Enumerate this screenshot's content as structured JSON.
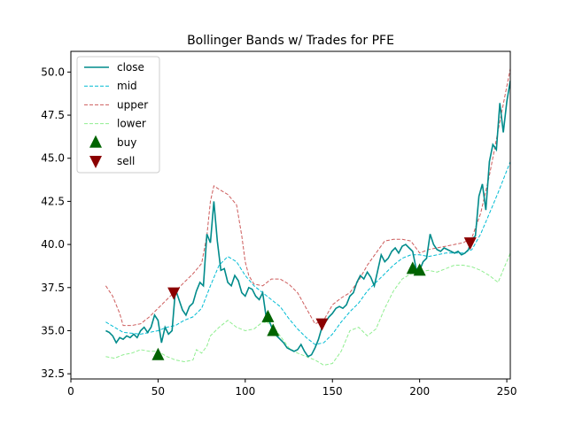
{
  "chart_data": {
    "type": "line",
    "title": "Bollinger Bands w/ Trades for PFE",
    "xlabel": "",
    "ylabel": "",
    "xlim": [
      0,
      252
    ],
    "ylim": [
      32.2,
      51.2
    ],
    "x_ticks": [
      0,
      50,
      100,
      150,
      200,
      250
    ],
    "y_ticks": [
      32.5,
      35.0,
      37.5,
      40.0,
      42.5,
      45.0,
      47.5,
      50.0
    ],
    "y_tick_labels": [
      "32.5",
      "35.0",
      "37.5",
      "40.0",
      "42.5",
      "45.0",
      "47.5",
      "50.0"
    ],
    "grid": false,
    "legend_position": "top-left",
    "series": [
      {
        "name": "close",
        "color": "#008b8b",
        "style": "solid",
        "x": [
          20,
          22,
          24,
          26,
          28,
          30,
          32,
          34,
          36,
          38,
          40,
          42,
          44,
          46,
          48,
          50,
          52,
          54,
          56,
          58,
          60,
          62,
          64,
          66,
          68,
          70,
          72,
          74,
          76,
          78,
          80,
          82,
          84,
          86,
          88,
          90,
          92,
          94,
          96,
          98,
          100,
          102,
          104,
          106,
          108,
          110,
          112,
          114,
          116,
          118,
          120,
          122,
          124,
          126,
          128,
          130,
          132,
          134,
          136,
          138,
          140,
          142,
          144,
          146,
          148,
          150,
          152,
          154,
          156,
          158,
          160,
          162,
          164,
          166,
          168,
          170,
          172,
          174,
          176,
          178,
          180,
          182,
          184,
          186,
          188,
          190,
          192,
          194,
          196,
          198,
          200,
          202,
          204,
          206,
          208,
          210,
          212,
          214,
          216,
          218,
          220,
          222,
          224,
          226,
          228,
          230,
          232,
          234,
          236,
          238,
          240,
          242,
          244,
          246,
          248,
          250,
          252
        ],
        "values": [
          35.0,
          34.9,
          34.7,
          34.3,
          34.6,
          34.5,
          34.7,
          34.6,
          34.8,
          34.6,
          35.0,
          35.2,
          34.9,
          35.2,
          35.9,
          35.6,
          34.3,
          35.2,
          34.8,
          35.0,
          37.4,
          36.8,
          36.2,
          35.9,
          36.4,
          36.6,
          37.3,
          37.8,
          37.6,
          40.6,
          40.1,
          42.5,
          40.2,
          38.5,
          38.6,
          37.8,
          37.6,
          38.2,
          37.9,
          37.2,
          37.0,
          37.5,
          37.4,
          37.0,
          36.8,
          37.2,
          35.8,
          35.5,
          35.0,
          34.7,
          34.5,
          34.3,
          34.0,
          33.9,
          33.8,
          33.9,
          34.2,
          33.8,
          33.5,
          33.6,
          34.0,
          34.5,
          35.2,
          35.5,
          35.8,
          36.0,
          36.3,
          36.4,
          36.3,
          36.5,
          37.0,
          37.2,
          37.8,
          38.2,
          38.0,
          38.4,
          38.1,
          37.6,
          38.5,
          39.4,
          39.0,
          39.2,
          39.6,
          39.8,
          39.5,
          39.9,
          40.0,
          39.8,
          39.6,
          38.6,
          38.5,
          39.0,
          39.2,
          40.6,
          40.0,
          39.7,
          39.6,
          39.8,
          39.7,
          39.6,
          39.5,
          39.6,
          39.4,
          39.5,
          39.7,
          40.3,
          40.5,
          42.8,
          43.5,
          42.0,
          44.8,
          45.8,
          45.5,
          48.2,
          46.5,
          48.3,
          49.5
        ]
      },
      {
        "name": "mid",
        "color": "#00bcd4",
        "style": "dashed",
        "x": [
          20,
          30,
          40,
          50,
          55,
          60,
          65,
          70,
          75,
          80,
          85,
          90,
          95,
          100,
          105,
          110,
          115,
          120,
          125,
          130,
          135,
          140,
          145,
          150,
          155,
          160,
          165,
          170,
          175,
          180,
          185,
          190,
          195,
          200,
          205,
          210,
          215,
          220,
          225,
          230,
          235,
          240,
          245,
          252
        ],
        "values": [
          35.5,
          34.9,
          34.8,
          35.0,
          35.2,
          35.3,
          35.6,
          35.8,
          36.3,
          37.6,
          38.8,
          39.3,
          39.0,
          38.2,
          37.6,
          37.2,
          36.8,
          36.4,
          35.7,
          35.1,
          34.6,
          34.2,
          34.3,
          34.8,
          35.5,
          36.1,
          36.6,
          37.3,
          37.8,
          38.3,
          38.8,
          39.2,
          39.4,
          39.4,
          39.3,
          39.4,
          39.5,
          39.5,
          39.5,
          39.7,
          40.6,
          41.8,
          43.0,
          44.8
        ]
      },
      {
        "name": "upper",
        "color": "#cd5c5c",
        "style": "dashed",
        "x": [
          20,
          24,
          28,
          30,
          35,
          40,
          45,
          50,
          55,
          60,
          65,
          70,
          75,
          78,
          80,
          82,
          85,
          90,
          95,
          98,
          100,
          102,
          105,
          110,
          115,
          120,
          125,
          130,
          135,
          140,
          145,
          150,
          155,
          160,
          165,
          170,
          175,
          180,
          185,
          190,
          195,
          200,
          205,
          210,
          215,
          220,
          225,
          230,
          235,
          240,
          245,
          252
        ],
        "values": [
          37.6,
          37.0,
          36.0,
          35.3,
          35.3,
          35.4,
          35.8,
          36.3,
          36.8,
          37.3,
          37.8,
          38.3,
          38.9,
          40.5,
          42.5,
          43.4,
          43.2,
          42.9,
          42.3,
          40.5,
          39.0,
          38.2,
          37.7,
          37.6,
          38.0,
          38.0,
          37.7,
          37.2,
          36.3,
          35.4,
          35.6,
          36.5,
          36.9,
          37.2,
          37.9,
          38.8,
          39.5,
          40.2,
          40.3,
          40.3,
          40.2,
          39.5,
          39.7,
          39.8,
          39.9,
          40.0,
          40.1,
          40.4,
          41.8,
          44.0,
          46.6,
          50.2
        ]
      },
      {
        "name": "lower",
        "color": "#90ee90",
        "style": "dashed",
        "x": [
          20,
          25,
          30,
          35,
          40,
          45,
          50,
          55,
          60,
          65,
          70,
          72,
          75,
          78,
          80,
          85,
          90,
          95,
          100,
          105,
          110,
          115,
          120,
          125,
          130,
          135,
          140,
          145,
          150,
          155,
          160,
          165,
          170,
          175,
          180,
          185,
          190,
          195,
          200,
          205,
          210,
          215,
          220,
          225,
          230,
          235,
          240,
          245,
          252
        ],
        "values": [
          33.5,
          33.4,
          33.6,
          33.7,
          33.9,
          33.8,
          33.8,
          33.5,
          33.3,
          33.2,
          33.3,
          33.9,
          33.7,
          34.1,
          34.7,
          35.2,
          35.6,
          35.2,
          35.0,
          35.1,
          35.5,
          35.4,
          34.7,
          34.0,
          33.7,
          33.5,
          33.3,
          33.0,
          33.1,
          33.8,
          35.0,
          35.2,
          34.7,
          35.1,
          36.3,
          37.3,
          38.0,
          38.3,
          38.4,
          38.5,
          38.4,
          38.6,
          38.8,
          38.8,
          38.7,
          38.5,
          38.2,
          37.8,
          39.5
        ]
      }
    ],
    "markers": [
      {
        "name": "buy",
        "color": "#006400",
        "shape": "triangle-up",
        "points": [
          [
            50,
            33.6
          ],
          [
            113,
            35.8
          ],
          [
            116,
            35.0
          ],
          [
            196,
            38.6
          ],
          [
            200,
            38.5
          ]
        ]
      },
      {
        "name": "sell",
        "color": "#8b0000",
        "shape": "triangle-down",
        "points": [
          [
            59,
            37.2
          ],
          [
            144,
            35.4
          ],
          [
            229,
            40.1
          ]
        ]
      }
    ]
  }
}
